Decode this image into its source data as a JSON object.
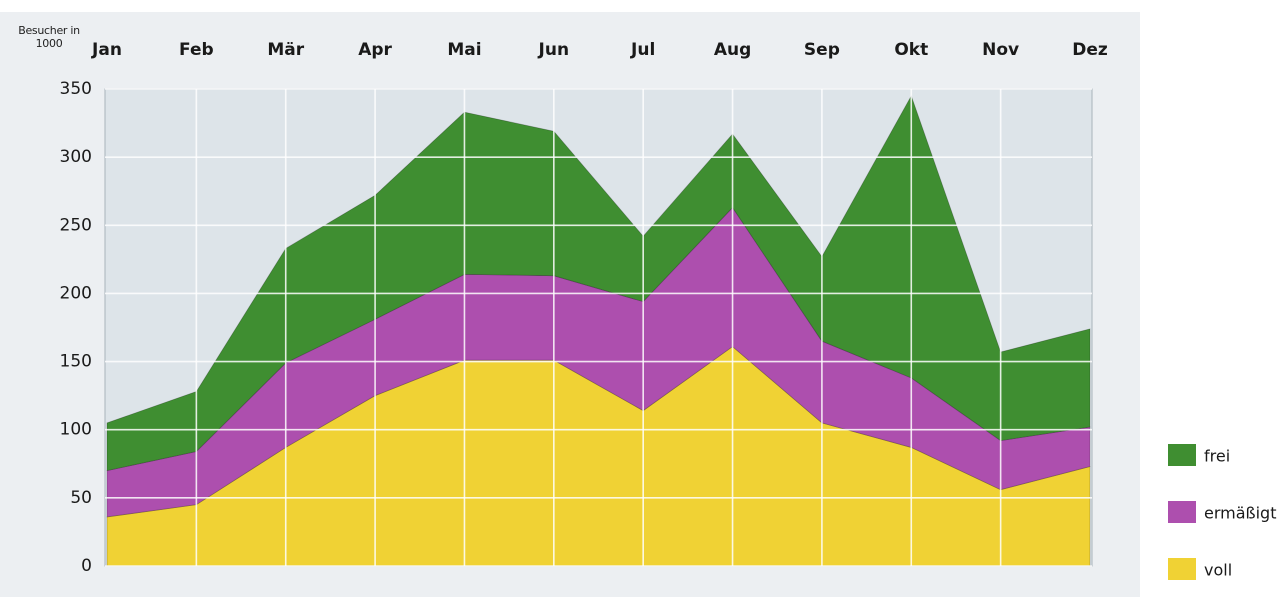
{
  "chart_data": {
    "type": "stacked_area",
    "y_label": "Besucher in 1000",
    "categories": [
      "Jan",
      "Feb",
      "Mär",
      "Apr",
      "Mai",
      "Jun",
      "Jul",
      "Aug",
      "Sep",
      "Okt",
      "Nov",
      "Dez"
    ],
    "series": [
      {
        "name": "voll",
        "color": "#f0d234",
        "values": [
          36,
          45,
          87,
          125,
          151,
          151,
          114,
          161,
          105,
          87,
          56,
          73
        ]
      },
      {
        "name": "ermäßigt",
        "color": "#ad4fae",
        "values": [
          34,
          39,
          62,
          56,
          63,
          62,
          80,
          102,
          60,
          51,
          36,
          29
        ]
      },
      {
        "name": "frei",
        "color": "#3f8e31",
        "values": [
          35,
          44,
          84,
          91,
          119,
          106,
          48,
          54,
          62,
          207,
          65,
          72
        ]
      }
    ],
    "ylim": [
      0,
      350
    ],
    "yticks": [
      0,
      50,
      100,
      150,
      200,
      250,
      300,
      350
    ],
    "grid": true,
    "legend": "right"
  }
}
